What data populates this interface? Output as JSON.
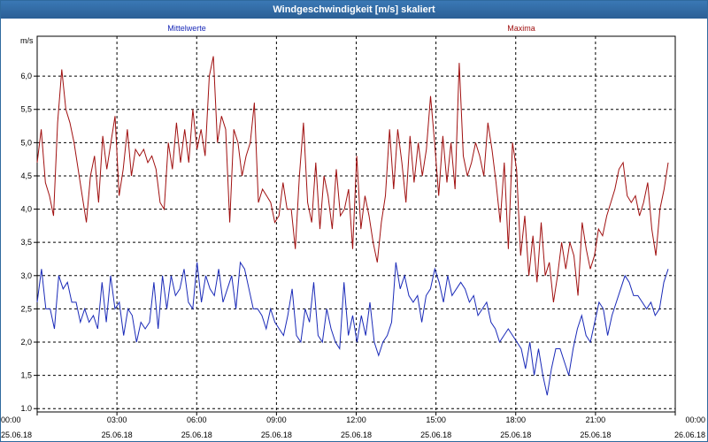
{
  "window": {
    "title": "Windgeschwindigkeit [m/s] skaliert"
  },
  "chart_data": {
    "type": "line",
    "title": "Windgeschwindigkeit [m/s] skaliert",
    "ylabel": "m/s",
    "ylim": [
      0.95,
      6.6
    ],
    "x_unit_hours": [
      0,
      24
    ],
    "grid": true,
    "legend_placement": "top",
    "y_ticks": [
      "1.0",
      "1,5",
      "2,0",
      "2,5",
      "3,0",
      "3,5",
      "4,0",
      "4,5",
      "5,0",
      "5,5",
      "6,0"
    ],
    "x_ticks": [
      {
        "time": "00:00",
        "date": "25.06.18"
      },
      {
        "time": "03:00",
        "date": "25.06.18"
      },
      {
        "time": "06:00",
        "date": "25.06.18"
      },
      {
        "time": "09:00",
        "date": "25.06.18"
      },
      {
        "time": "12:00",
        "date": "25.06.18"
      },
      {
        "time": "15:00",
        "date": "25.06.18"
      },
      {
        "time": "18:00",
        "date": "25.06.18"
      },
      {
        "time": "21:00",
        "date": "25.06.18"
      },
      {
        "time": "00:00",
        "date": "26.06.18"
      }
    ],
    "series": [
      {
        "name": "Maxima",
        "color": "#a01010",
        "values": [
          4.7,
          5.2,
          4.4,
          4.2,
          3.9,
          5.3,
          6.1,
          5.5,
          5.3,
          5.0,
          4.6,
          4.2,
          3.8,
          4.5,
          4.8,
          4.1,
          5.1,
          4.6,
          5.0,
          5.4,
          4.2,
          4.6,
          5.2,
          4.5,
          4.9,
          4.8,
          4.9,
          4.7,
          4.8,
          4.6,
          4.1,
          4.0,
          5.0,
          4.6,
          5.3,
          4.7,
          5.2,
          4.7,
          5.5,
          4.9,
          5.2,
          4.8,
          6.0,
          6.3,
          5.0,
          5.4,
          5.2,
          3.8,
          5.2,
          5.0,
          4.5,
          4.8,
          5.0,
          5.6,
          4.1,
          4.3,
          4.2,
          4.1,
          3.8,
          3.9,
          4.4,
          4.0,
          4.0,
          3.4,
          4.5,
          5.3,
          4.1,
          3.8,
          4.7,
          3.7,
          4.5,
          4.2,
          3.7,
          4.6,
          3.9,
          4.0,
          4.3,
          3.4,
          4.8,
          3.7,
          4.2,
          3.9,
          3.5,
          3.2,
          3.8,
          4.2,
          5.2,
          4.3,
          5.2,
          4.7,
          4.1,
          5.1,
          4.4,
          5.0,
          4.5,
          4.9,
          5.7,
          5.0,
          4.2,
          5.1,
          4.4,
          5.0,
          4.3,
          6.2,
          4.8,
          4.5,
          4.7,
          5.0,
          4.8,
          4.5,
          5.3,
          4.9,
          4.4,
          3.8,
          4.7,
          3.4,
          5.0,
          4.6,
          3.3,
          3.9,
          3.0,
          3.6,
          2.9,
          3.8,
          3.0,
          3.2,
          2.6,
          3.0,
          3.5,
          3.1,
          3.5,
          3.3,
          2.7,
          3.8,
          3.4,
          3.1,
          3.3,
          3.7,
          3.6,
          3.9,
          4.1,
          4.3,
          4.6,
          4.7,
          4.2,
          4.1,
          4.2,
          3.9,
          4.1,
          4.4,
          3.7,
          3.3,
          4.0,
          4.3,
          4.7
        ]
      },
      {
        "name": "Mittelwerte",
        "color": "#1a2ab8",
        "values": [
          2.6,
          3.1,
          2.5,
          2.5,
          2.2,
          3.0,
          2.8,
          2.9,
          2.6,
          2.6,
          2.3,
          2.5,
          2.3,
          2.4,
          2.2,
          2.9,
          2.3,
          3.0,
          2.5,
          2.6,
          2.1,
          2.5,
          2.4,
          2.0,
          2.3,
          2.2,
          2.3,
          2.9,
          2.2,
          3.0,
          2.5,
          3.0,
          2.7,
          2.8,
          3.1,
          2.6,
          2.5,
          3.2,
          2.6,
          3.0,
          2.8,
          2.7,
          3.1,
          2.6,
          2.8,
          3.0,
          2.5,
          3.2,
          3.1,
          2.8,
          2.5,
          2.5,
          2.4,
          2.2,
          2.5,
          2.3,
          2.2,
          2.1,
          2.4,
          2.8,
          2.1,
          2.0,
          2.5,
          2.3,
          2.9,
          2.1,
          2.0,
          2.5,
          2.2,
          2.0,
          1.9,
          2.9,
          2.1,
          2.4,
          2.0,
          2.4,
          2.1,
          2.6,
          2.0,
          1.8,
          2.0,
          2.1,
          2.3,
          3.2,
          2.8,
          3.0,
          2.7,
          2.6,
          2.7,
          2.3,
          2.7,
          2.8,
          3.1,
          2.9,
          2.6,
          3.0,
          2.7,
          2.8,
          2.9,
          2.8,
          2.6,
          2.7,
          2.4,
          2.5,
          2.6,
          2.3,
          2.2,
          2.0,
          2.1,
          2.2,
          2.1,
          2.0,
          1.9,
          1.6,
          2.0,
          1.5,
          1.9,
          1.5,
          1.2,
          1.6,
          1.9,
          1.9,
          1.7,
          1.5,
          1.9,
          2.2,
          2.4,
          2.1,
          2.0,
          2.3,
          2.6,
          2.5,
          2.1,
          2.4,
          2.6,
          2.8,
          3.0,
          2.9,
          2.7,
          2.7,
          2.6,
          2.5,
          2.6,
          2.4,
          2.5,
          2.9,
          3.1
        ]
      }
    ]
  }
}
